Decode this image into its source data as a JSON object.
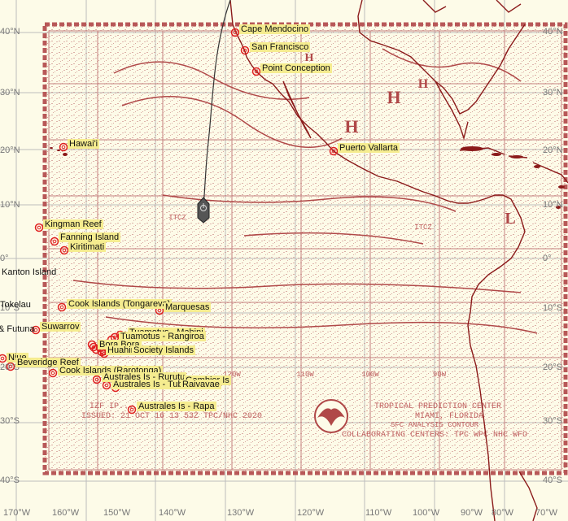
{
  "map": {
    "colors": {
      "paper": "#fdfbe8",
      "coast": "#8b1a1a",
      "chart": "#b85858",
      "marker": "#e02020",
      "label_bg": "#f5ec8f",
      "grid": "#bdbdbd",
      "ship": "#555555",
      "route": "#333333"
    },
    "lon_labels": [
      "170°W",
      "160°W",
      "150°W",
      "140°W",
      "130°W",
      "120°W",
      "110°W",
      "100°W",
      "90°W",
      "80°W",
      "70°W"
    ],
    "lat_labels": [
      "40°N",
      "30°N",
      "20°N",
      "10°N",
      "0°",
      "10°S",
      "20°S",
      "30°S",
      "40°S"
    ],
    "chart_text": {
      "title": "IZF IP... SURFACE ANALYSIS",
      "line2": "ISSUED: 21 OCT 16  13 53Z  TPC/NHC 2020",
      "center": "TROPICAL PREDICTION CENTER",
      "city": "MIAMI, FLORIDA",
      "note": "SFC ANALYSIS  CONTOUR",
      "collab": "COLLABORATING CENTERS: TPC  WPC  NHC  WFO"
    },
    "places": [
      {
        "name": "Cape Mendocino"
      },
      {
        "name": "San Francisco"
      },
      {
        "name": "Point Conception"
      },
      {
        "name": "Puerto Vallarta"
      },
      {
        "name": "Hawai'i"
      },
      {
        "name": "Kingman Reef"
      },
      {
        "name": "Fanning Island"
      },
      {
        "name": "Kiritimati"
      },
      {
        "name": "Kanton Island"
      },
      {
        "name": "Tokelau"
      },
      {
        "name": "Cook Islands (Tongareva)"
      },
      {
        "name": "Marquesas"
      },
      {
        "name": "& Futuna"
      },
      {
        "name": "Suwarrov"
      },
      {
        "name": "Tuamotus - Mahini"
      },
      {
        "name": "Tuamotus - Rangiroa"
      },
      {
        "name": "Bora Bora"
      },
      {
        "name": "Huahine"
      },
      {
        "name": "Society Islands"
      },
      {
        "name": "Niue"
      },
      {
        "name": "Beveridge Reef"
      },
      {
        "name": "Cook Islands (Rarotonga)"
      },
      {
        "name": "Australes Is - Rurutu"
      },
      {
        "name": "Australes Is - Tubuai"
      },
      {
        "name": "Gambier Is"
      },
      {
        "name": "Raivavae"
      },
      {
        "name": "Australes Is - Rapa"
      }
    ]
  }
}
